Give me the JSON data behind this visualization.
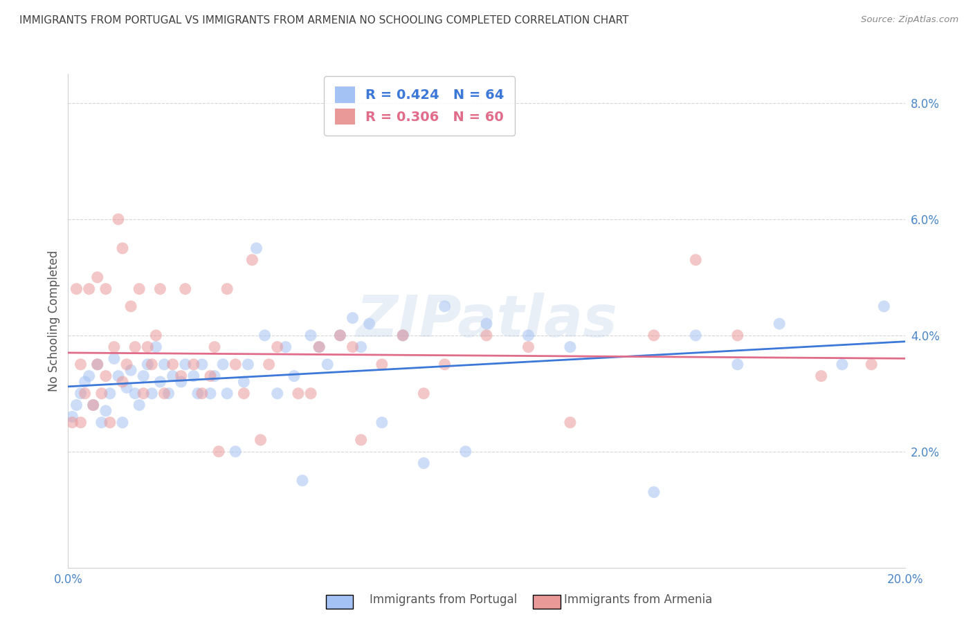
{
  "title": "IMMIGRANTS FROM PORTUGAL VS IMMIGRANTS FROM ARMENIA NO SCHOOLING COMPLETED CORRELATION CHART",
  "source": "Source: ZipAtlas.com",
  "ylabel": "No Schooling Completed",
  "xlim": [
    0.0,
    0.2
  ],
  "ylim": [
    0.0,
    0.085
  ],
  "xticks": [
    0.0,
    0.04,
    0.08,
    0.12,
    0.16,
    0.2
  ],
  "xticklabels": [
    "0.0%",
    "",
    "",
    "",
    "",
    "20.0%"
  ],
  "yticks": [
    0.0,
    0.02,
    0.04,
    0.06,
    0.08
  ],
  "yticklabels": [
    "",
    "2.0%",
    "4.0%",
    "6.0%",
    "8.0%"
  ],
  "portugal_R": 0.424,
  "portugal_N": 64,
  "armenia_R": 0.306,
  "armenia_N": 60,
  "portugal_color": "#a4c2f4",
  "armenia_color": "#ea9999",
  "portugal_line_color": "#3c78d8",
  "armenia_line_color": "#e06c8a",
  "background_color": "#ffffff",
  "grid_color": "#cccccc",
  "title_color": "#404040",
  "axis_label_color": "#555555",
  "tick_color": "#4a86c8",
  "legend_label_portugal": "Immigrants from Portugal",
  "legend_label_armenia": "Immigrants from Armenia",
  "watermark": "ZIPatlas",
  "portugal_x": [
    0.001,
    0.002,
    0.003,
    0.004,
    0.005,
    0.006,
    0.007,
    0.008,
    0.009,
    0.01,
    0.011,
    0.012,
    0.013,
    0.014,
    0.015,
    0.016,
    0.017,
    0.018,
    0.019,
    0.02,
    0.021,
    0.022,
    0.023,
    0.024,
    0.025,
    0.027,
    0.028,
    0.03,
    0.031,
    0.032,
    0.034,
    0.035,
    0.037,
    0.038,
    0.04,
    0.042,
    0.043,
    0.045,
    0.047,
    0.05,
    0.052,
    0.054,
    0.056,
    0.058,
    0.06,
    0.062,
    0.065,
    0.068,
    0.07,
    0.072,
    0.075,
    0.08,
    0.085,
    0.09,
    0.095,
    0.1,
    0.11,
    0.12,
    0.14,
    0.15,
    0.16,
    0.17,
    0.185,
    0.195
  ],
  "portugal_y": [
    0.026,
    0.028,
    0.03,
    0.032,
    0.033,
    0.028,
    0.035,
    0.025,
    0.027,
    0.03,
    0.036,
    0.033,
    0.025,
    0.031,
    0.034,
    0.03,
    0.028,
    0.033,
    0.035,
    0.03,
    0.038,
    0.032,
    0.035,
    0.03,
    0.033,
    0.032,
    0.035,
    0.033,
    0.03,
    0.035,
    0.03,
    0.033,
    0.035,
    0.03,
    0.02,
    0.032,
    0.035,
    0.055,
    0.04,
    0.03,
    0.038,
    0.033,
    0.015,
    0.04,
    0.038,
    0.035,
    0.04,
    0.043,
    0.038,
    0.042,
    0.025,
    0.04,
    0.018,
    0.045,
    0.02,
    0.042,
    0.04,
    0.038,
    0.013,
    0.04,
    0.035,
    0.042,
    0.035,
    0.045
  ],
  "armenia_x": [
    0.001,
    0.002,
    0.003,
    0.003,
    0.004,
    0.005,
    0.006,
    0.007,
    0.007,
    0.008,
    0.009,
    0.009,
    0.01,
    0.011,
    0.012,
    0.013,
    0.013,
    0.014,
    0.015,
    0.016,
    0.017,
    0.018,
    0.019,
    0.02,
    0.021,
    0.022,
    0.023,
    0.025,
    0.027,
    0.028,
    0.03,
    0.032,
    0.034,
    0.035,
    0.036,
    0.038,
    0.04,
    0.042,
    0.044,
    0.046,
    0.048,
    0.05,
    0.055,
    0.058,
    0.06,
    0.065,
    0.068,
    0.07,
    0.075,
    0.08,
    0.085,
    0.09,
    0.1,
    0.11,
    0.12,
    0.14,
    0.15,
    0.16,
    0.18,
    0.192
  ],
  "armenia_y": [
    0.025,
    0.048,
    0.035,
    0.025,
    0.03,
    0.048,
    0.028,
    0.035,
    0.05,
    0.03,
    0.033,
    0.048,
    0.025,
    0.038,
    0.06,
    0.032,
    0.055,
    0.035,
    0.045,
    0.038,
    0.048,
    0.03,
    0.038,
    0.035,
    0.04,
    0.048,
    0.03,
    0.035,
    0.033,
    0.048,
    0.035,
    0.03,
    0.033,
    0.038,
    0.02,
    0.048,
    0.035,
    0.03,
    0.053,
    0.022,
    0.035,
    0.038,
    0.03,
    0.03,
    0.038,
    0.04,
    0.038,
    0.022,
    0.035,
    0.04,
    0.03,
    0.035,
    0.04,
    0.038,
    0.025,
    0.04,
    0.053,
    0.04,
    0.033,
    0.035
  ]
}
